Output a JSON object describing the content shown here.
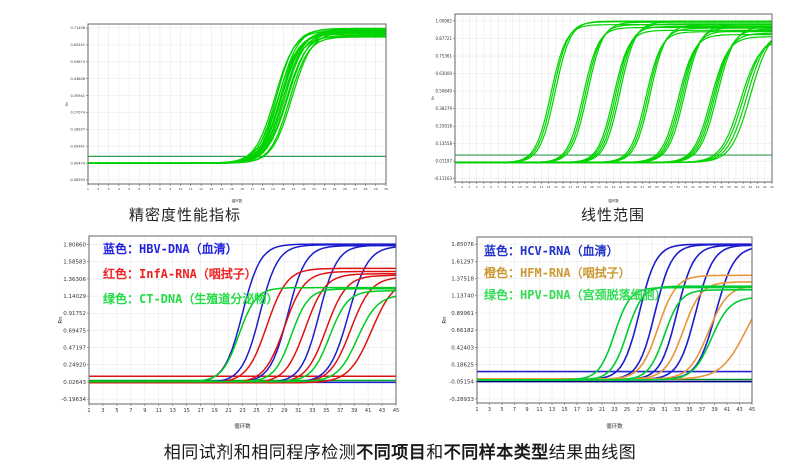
{
  "caption": {
    "parts": [
      "相同试剂和相同程序检测",
      "不同项目",
      "和",
      "不同样本类型",
      "结果曲线图"
    ]
  },
  "palette": {
    "curve_green": "#00d300",
    "curve_blue": "#1c1ccd",
    "curve_red": "#de1212",
    "curve_orange": "#e8953c",
    "threshold_green": "#2e9e50",
    "navy": "#000080"
  },
  "chart_data": [
    {
      "type": "line",
      "title": "精密度性能指标",
      "xlabel": "循环数",
      "ylabel": "Rn",
      "xlim": [
        1,
        30
      ],
      "ylim": [
        -0.105,
        0.735
      ],
      "x_tick_step": 1,
      "grid_x": 1,
      "grid": true,
      "legend_position": "none",
      "y_ticks": [
        "0.71408",
        "0.62541",
        "0.53674",
        "0.44808",
        "0.35941",
        "0.27074",
        "0.18207",
        "0.09341",
        "0.00474",
        "-0.08393"
      ],
      "thresholds": [
        {
          "value": 0.04,
          "color": "#2e9e50"
        }
      ],
      "curves": [
        {
          "color": "#00d300",
          "mid": 19.2,
          "plateau": 0.7,
          "base": 0.004,
          "k": 1.05
        },
        {
          "color": "#00d300",
          "mid": 19.35,
          "plateau": 0.708,
          "base": 0.003,
          "k": 1.1
        },
        {
          "color": "#00d300",
          "mid": 19.5,
          "plateau": 0.69,
          "base": 0.005,
          "k": 1.0
        },
        {
          "color": "#00d300",
          "mid": 19.6,
          "plateau": 0.712,
          "base": 0.004,
          "k": 1.08
        },
        {
          "color": "#00d300",
          "mid": 19.7,
          "plateau": 0.682,
          "base": 0.006,
          "k": 1.12
        },
        {
          "color": "#00d300",
          "mid": 19.8,
          "plateau": 0.702,
          "base": 0.004,
          "k": 1.0
        },
        {
          "color": "#00d300",
          "mid": 19.85,
          "plateau": 0.695,
          "base": 0.005,
          "k": 1.05
        },
        {
          "color": "#00d300",
          "mid": 19.95,
          "plateau": 0.67,
          "base": 0.003,
          "k": 1.1
        },
        {
          "color": "#00d300",
          "mid": 20.05,
          "plateau": 0.706,
          "base": 0.004,
          "k": 1.02
        },
        {
          "color": "#00d300",
          "mid": 20.15,
          "plateau": 0.688,
          "base": 0.005,
          "k": 1.08
        },
        {
          "color": "#00d300",
          "mid": 20.3,
          "plateau": 0.676,
          "base": 0.004,
          "k": 1.05
        },
        {
          "color": "#00d300",
          "mid": 20.45,
          "plateau": 0.698,
          "base": 0.003,
          "k": 1.0
        },
        {
          "color": "#00d300",
          "mid": 20.6,
          "plateau": 0.667,
          "base": 0.005,
          "k": 1.1
        },
        {
          "color": "#00d300",
          "mid": 20.85,
          "plateau": 0.692,
          "base": 0.004,
          "k": 1.05
        }
      ]
    },
    {
      "type": "line",
      "title": "线性范围",
      "xlabel": "循环数",
      "ylabel": "Rn",
      "xlim": [
        1,
        45
      ],
      "ylim": [
        -0.135,
        1.05
      ],
      "x_tick_step": 1,
      "grid_x": 1,
      "grid": true,
      "legend_position": "none",
      "y_ticks": [
        "1.00082",
        "0.87721",
        "0.75361",
        "0.63000",
        "0.50640",
        "0.38279",
        "0.25918",
        "0.13558",
        "0.01197",
        "-0.11163"
      ],
      "thresholds": [
        {
          "value": 0.055,
          "color": "#2e9e50"
        }
      ],
      "curves": [
        {
          "color": "#00d300",
          "mid": 14.3,
          "plateau": 0.975,
          "base": 0.002,
          "k": 0.95
        },
        {
          "color": "#00d300",
          "mid": 14.6,
          "plateau": 0.995,
          "base": 0.003,
          "k": 0.95
        },
        {
          "color": "#00d300",
          "mid": 14.9,
          "plateau": 1.0,
          "base": 0.002,
          "k": 0.95
        },
        {
          "color": "#00d300",
          "mid": 18.8,
          "plateau": 0.955,
          "base": 0.002,
          "k": 0.95
        },
        {
          "color": "#00d300",
          "mid": 19.1,
          "plateau": 0.975,
          "base": 0.003,
          "k": 0.95
        },
        {
          "color": "#00d300",
          "mid": 19.4,
          "plateau": 0.992,
          "base": 0.002,
          "k": 0.95
        },
        {
          "color": "#00d300",
          "mid": 23.0,
          "plateau": 0.935,
          "base": 0.002,
          "k": 0.95
        },
        {
          "color": "#00d300",
          "mid": 23.3,
          "plateau": 0.962,
          "base": 0.003,
          "k": 0.95
        },
        {
          "color": "#00d300",
          "mid": 23.6,
          "plateau": 0.98,
          "base": 0.002,
          "k": 0.95
        },
        {
          "color": "#00d300",
          "mid": 23.9,
          "plateau": 0.995,
          "base": 0.002,
          "k": 0.95
        },
        {
          "color": "#00d300",
          "mid": 27.5,
          "plateau": 0.925,
          "base": 0.003,
          "k": 0.95
        },
        {
          "color": "#00d300",
          "mid": 27.8,
          "plateau": 0.95,
          "base": 0.002,
          "k": 0.95
        },
        {
          "color": "#00d300",
          "mid": 28.1,
          "plateau": 0.972,
          "base": 0.002,
          "k": 0.95
        },
        {
          "color": "#00d300",
          "mid": 32.0,
          "plateau": 0.905,
          "base": 0.003,
          "k": 0.9
        },
        {
          "color": "#00d300",
          "mid": 32.3,
          "plateau": 0.93,
          "base": 0.002,
          "k": 0.9
        },
        {
          "color": "#00d300",
          "mid": 32.6,
          "plateau": 0.955,
          "base": 0.002,
          "k": 0.9
        },
        {
          "color": "#00d300",
          "mid": 32.9,
          "plateau": 0.975,
          "base": 0.003,
          "k": 0.9
        },
        {
          "color": "#00d300",
          "mid": 36.5,
          "plateau": 0.89,
          "base": 0.002,
          "k": 0.85
        },
        {
          "color": "#00d300",
          "mid": 36.8,
          "plateau": 0.915,
          "base": 0.003,
          "k": 0.85
        },
        {
          "color": "#00d300",
          "mid": 37.1,
          "plateau": 0.945,
          "base": 0.002,
          "k": 0.85
        },
        {
          "color": "#00d300",
          "mid": 37.4,
          "plateau": 0.962,
          "base": 0.002,
          "k": 0.85
        },
        {
          "color": "#00d300",
          "mid": 40.6,
          "plateau": 0.87,
          "base": 0.003,
          "k": 0.75
        },
        {
          "color": "#00d300",
          "mid": 41.0,
          "plateau": 0.9,
          "base": 0.002,
          "k": 0.75
        },
        {
          "color": "#00d300",
          "mid": 41.5,
          "plateau": 0.93,
          "base": 0.002,
          "k": 0.75
        },
        {
          "color": "#00d300",
          "mid": 42.0,
          "plateau": 0.95,
          "base": 0.003,
          "k": 0.75
        }
      ]
    },
    {
      "type": "line",
      "title": "",
      "xlabel": "循环数",
      "ylabel": "Rn",
      "xlim": [
        1,
        45
      ],
      "ylim": [
        -0.26,
        1.92
      ],
      "x_tick_step": 2,
      "grid_x": 2,
      "grid": true,
      "legend_position": "top-left-inside",
      "y_ticks": [
        "1.80860",
        "1.58583",
        "1.36306",
        "1.14029",
        "0.91752",
        "0.69475",
        "0.47197",
        "0.24920",
        "0.02643",
        "-0.19634"
      ],
      "legend": [
        {
          "label": "蓝色：HBV-DNA（血清）",
          "color": "#2222dd"
        },
        {
          "label": "红色：InfA-RNA（咽拭子）",
          "color": "#ee2222"
        },
        {
          "label": "绿色：CT-DNA（生殖道分泌物）",
          "color": "#22dd44"
        }
      ],
      "thresholds": [
        {
          "value": 0.1,
          "color": "#de1212"
        },
        {
          "value": 0.045,
          "color": "#00aa22"
        },
        {
          "value": 0.02,
          "color": "#1c1ccd"
        }
      ],
      "curves": [
        {
          "color": "#1c1ccd",
          "mid": 23.0,
          "plateau": 1.815,
          "base": 0.02,
          "k": 0.78
        },
        {
          "color": "#1c1ccd",
          "mid": 25.5,
          "plateau": 1.805,
          "base": 0.02,
          "k": 0.78
        },
        {
          "color": "#1c1ccd",
          "mid": 29.5,
          "plateau": 1.795,
          "base": 0.02,
          "k": 0.78
        },
        {
          "color": "#1c1ccd",
          "mid": 34.0,
          "plateau": 1.8,
          "base": 0.02,
          "k": 0.78
        },
        {
          "color": "#1c1ccd",
          "mid": 38.2,
          "plateau": 1.79,
          "base": 0.02,
          "k": 0.72
        },
        {
          "color": "#de1212",
          "mid": 26.5,
          "plateau": 1.5,
          "base": 0.015,
          "k": 0.7
        },
        {
          "color": "#de1212",
          "mid": 29.0,
          "plateau": 1.46,
          "base": 0.015,
          "k": 0.7
        },
        {
          "color": "#de1212",
          "mid": 32.0,
          "plateau": 1.43,
          "base": 0.015,
          "k": 0.7
        },
        {
          "color": "#de1212",
          "mid": 35.0,
          "plateau": 1.41,
          "base": 0.015,
          "k": 0.7
        },
        {
          "color": "#de1212",
          "mid": 38.5,
          "plateau": 1.39,
          "base": 0.015,
          "k": 0.68
        },
        {
          "color": "#de1212",
          "mid": 41.5,
          "plateau": 1.37,
          "base": 0.015,
          "k": 0.62
        },
        {
          "color": "#00cc22",
          "mid": 22.5,
          "plateau": 1.25,
          "base": 0.03,
          "k": 0.82
        },
        {
          "color": "#00cc22",
          "mid": 30.0,
          "plateau": 1.235,
          "base": 0.03,
          "k": 0.82
        },
        {
          "color": "#00cc22",
          "mid": 35.5,
          "plateau": 1.21,
          "base": 0.03,
          "k": 0.78
        },
        {
          "color": "#00cc22",
          "mid": 39.5,
          "plateau": 1.16,
          "base": 0.03,
          "k": 0.7
        }
      ]
    },
    {
      "type": "line",
      "title": "",
      "xlabel": "循环数",
      "ylabel": "Rn",
      "xlim": [
        1,
        45
      ],
      "ylim": [
        -0.345,
        1.95
      ],
      "x_tick_step": 2,
      "grid_x": 2,
      "grid": true,
      "legend_position": "top-left-inside",
      "y_ticks": [
        "1.85076",
        "1.61297",
        "1.37518",
        "1.13740",
        "0.89961",
        "0.66182",
        "0.42403",
        "0.18625",
        "-0.05154",
        "-0.28933"
      ],
      "legend": [
        {
          "label": "蓝色：HCV-RNA（血清）",
          "color": "#2233cc"
        },
        {
          "label": "橙色：HFM-RNA（咽拭子）",
          "color": "#cc9933"
        },
        {
          "label": "绿色：HPV-DNA（宫颈脱落细胞）",
          "color": "#33dd55"
        }
      ],
      "thresholds": [
        {
          "value": 0.09,
          "color": "#2424cc"
        },
        {
          "value": -0.02,
          "color": "#0b8a3a"
        },
        {
          "value": -0.048,
          "color": "#000080"
        }
      ],
      "curves": [
        {
          "color": "#1c1ccd",
          "mid": 27.0,
          "plateau": 1.85,
          "base": -0.02,
          "k": 0.75
        },
        {
          "color": "#1c1ccd",
          "mid": 29.5,
          "plateau": 1.845,
          "base": -0.02,
          "k": 0.75
        },
        {
          "color": "#1c1ccd",
          "mid": 33.0,
          "plateau": 1.835,
          "base": -0.02,
          "k": 0.75
        },
        {
          "color": "#1c1ccd",
          "mid": 36.0,
          "plateau": 1.84,
          "base": -0.02,
          "k": 0.72
        },
        {
          "color": "#1c1ccd",
          "mid": 39.2,
          "plateau": 1.825,
          "base": -0.02,
          "k": 0.68
        },
        {
          "color": "#e8953c",
          "mid": 30.0,
          "plateau": 1.42,
          "base": -0.015,
          "k": 0.7
        },
        {
          "color": "#e8953c",
          "mid": 34.0,
          "plateau": 1.33,
          "base": -0.015,
          "k": 0.7
        },
        {
          "color": "#e8953c",
          "mid": 38.0,
          "plateau": 1.28,
          "base": -0.015,
          "k": 0.65
        },
        {
          "color": "#e8953c",
          "mid": 44.0,
          "plateau": 1.32,
          "base": -0.015,
          "k": 0.5
        },
        {
          "color": "#00cc33",
          "mid": 23.0,
          "plateau": 1.25,
          "base": -0.025,
          "k": 0.8
        },
        {
          "color": "#00cc33",
          "mid": 25.0,
          "plateau": 1.27,
          "base": -0.025,
          "k": 0.8
        },
        {
          "color": "#00cc33",
          "mid": 31.0,
          "plateau": 1.22,
          "base": -0.025,
          "k": 0.78
        },
        {
          "color": "#00cc33",
          "mid": 38.5,
          "plateau": 1.12,
          "base": -0.025,
          "k": 0.68
        }
      ]
    }
  ]
}
